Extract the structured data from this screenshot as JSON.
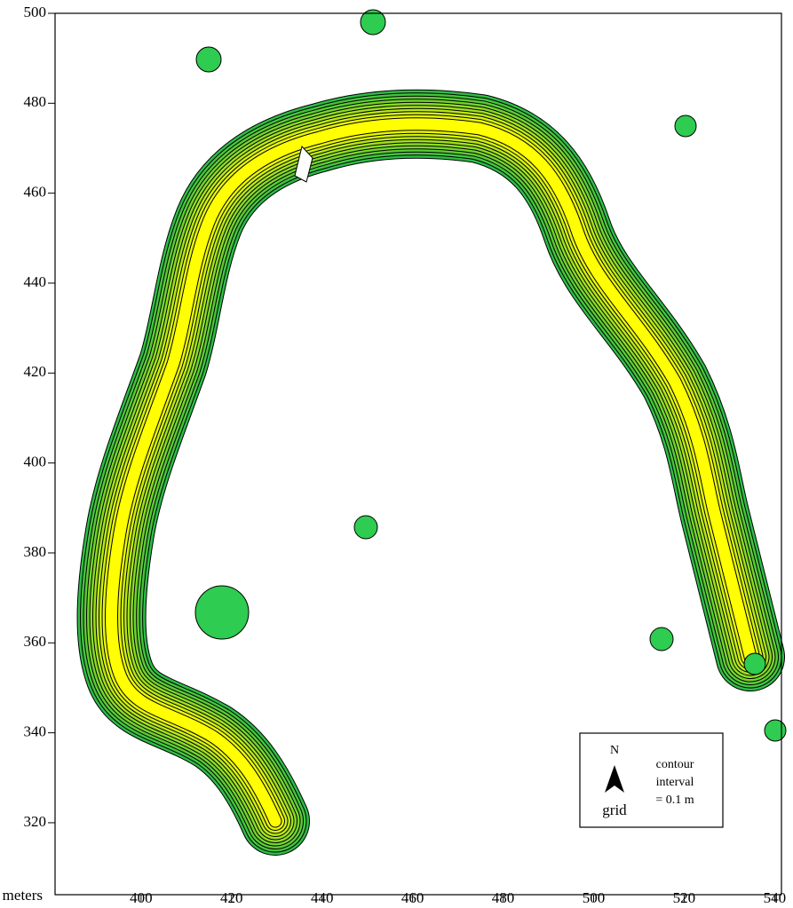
{
  "chart_data": {
    "type": "contour",
    "x_label": "meters",
    "xlim": [
      381,
      541.5
    ],
    "ylim": [
      304,
      500
    ],
    "xticks": [
      400,
      420,
      440,
      460,
      480,
      500,
      520,
      540
    ],
    "yticks": [
      320,
      340,
      360,
      380,
      400,
      420,
      440,
      460,
      480,
      500
    ],
    "legend": {
      "north": "N",
      "grid": "grid",
      "note": [
        "contour",
        "interval",
        "= 0.1 m"
      ]
    }
  }
}
